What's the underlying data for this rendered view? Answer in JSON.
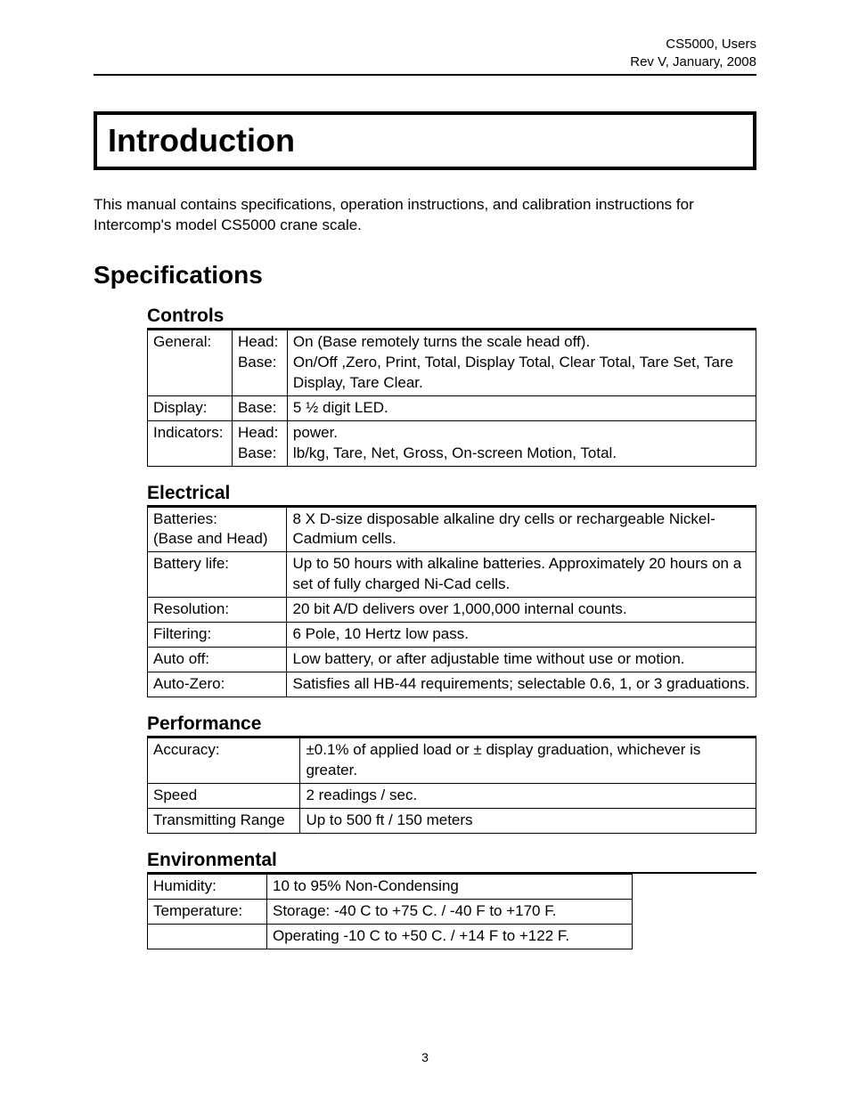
{
  "header": {
    "line1": "CS5000, Users",
    "line2": "Rev V, January, 2008"
  },
  "title": "Introduction",
  "intro": "This manual contains specifications, operation instructions, and calibration instructions for Intercomp's model CS5000 crane scale.",
  "specs_heading": "Specifications",
  "controls": {
    "heading": "Controls",
    "rows": [
      {
        "c1": "General:",
        "c2": "Head:\nBase:",
        "c3": "On (Base remotely turns the scale head off).\nOn/Off ,Zero, Print, Total, Display Total, Clear Total, Tare Set, Tare Display, Tare Clear."
      },
      {
        "c1": "Display:",
        "c2": "Base:",
        "c3": "5 ½ digit LED."
      },
      {
        "c1": "Indicators:",
        "c2": "Head:\nBase:",
        "c3": "power.\nlb/kg, Tare, Net, Gross, On-screen Motion, Total."
      }
    ]
  },
  "electrical": {
    "heading": "Electrical",
    "rows": [
      {
        "c1": "Batteries:\n(Base and Head)",
        "c2": "8 X D-size disposable alkaline dry cells or rechargeable Nickel-Cadmium cells."
      },
      {
        "c1": "Battery life:",
        "c2": "Up to 50 hours with alkaline batteries.  Approximately 20 hours on a set of fully charged Ni-Cad cells."
      },
      {
        "c1": "Resolution:",
        "c2": "20 bit A/D delivers over 1,000,000 internal counts."
      },
      {
        "c1": "Filtering:",
        "c2": "6 Pole, 10 Hertz low pass."
      },
      {
        "c1": "Auto off:",
        "c2": "Low battery, or after adjustable time without use or motion."
      },
      {
        "c1": "Auto-Zero:",
        "c2": "Satisfies all HB-44 requirements; selectable 0.6, 1, or 3 graduations."
      }
    ]
  },
  "performance": {
    "heading": "Performance",
    "rows": [
      {
        "c1": "Accuracy:",
        "c2": "±0.1% of applied load or ± display graduation, whichever is greater."
      },
      {
        "c1": "Speed",
        "c2": "2 readings / sec."
      },
      {
        "c1": "Transmitting Range",
        "c2": "Up to 500 ft / 150 meters"
      }
    ]
  },
  "environmental": {
    "heading": "Environmental",
    "rows": [
      {
        "c1": "Humidity:",
        "c2": "10 to 95% Non-Condensing"
      },
      {
        "c1": "Temperature:",
        "c2": "Storage: -40 C to +75 C.  / -40 F to +170 F."
      },
      {
        "c1": "",
        "c2": "Operating -10 C to +50 C.  / +14 F to +122 F."
      }
    ]
  },
  "page_number": "3"
}
